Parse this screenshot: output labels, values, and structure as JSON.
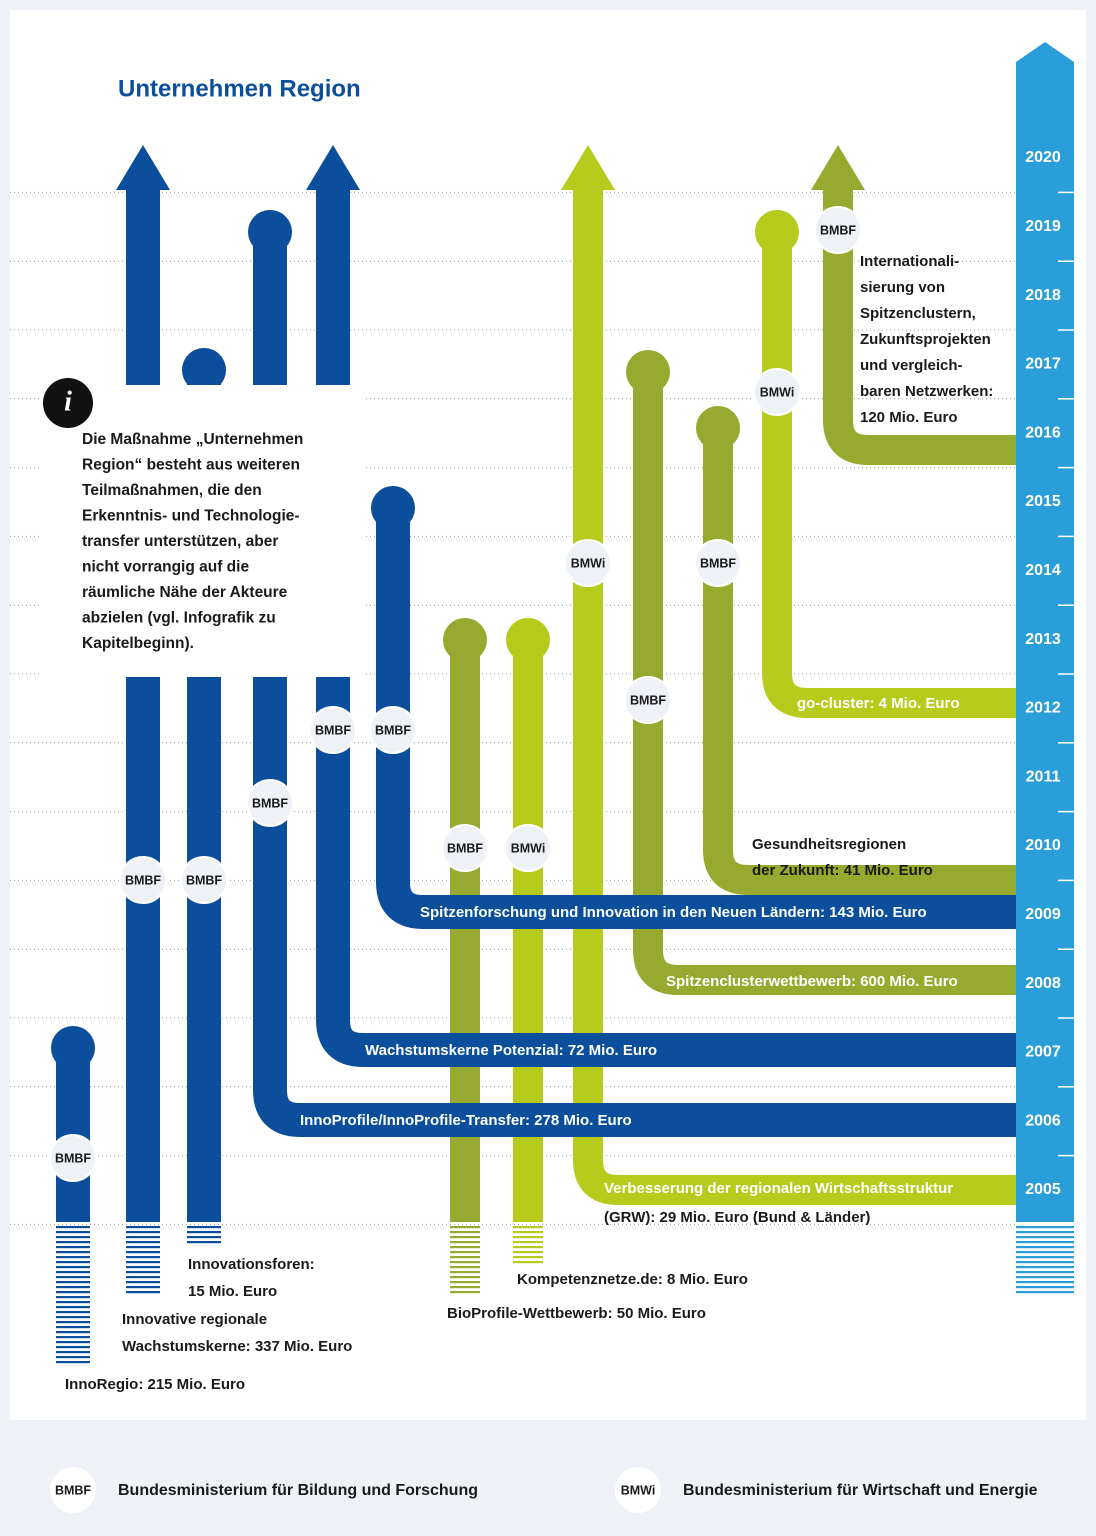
{
  "title": "Unternehmen Region",
  "years": [
    "2020",
    "2019",
    "2018",
    "2017",
    "2016",
    "2015",
    "2014",
    "2013",
    "2012",
    "2011",
    "2010",
    "2009",
    "2008",
    "2007",
    "2006",
    "2005"
  ],
  "info": {
    "icon": "i",
    "lines": [
      "Die Maßnahme „Unternehmen",
      "Region“ besteht aus weiteren",
      "Teilmaßnahmen, die den",
      "Erkenntnis- und Technologie-",
      "transfer unterstützen, aber",
      "nicht vorrangig auf die",
      "räumliche Nähe der Akteure",
      "abzielen (vgl. Infografik zu",
      "Kapitelbeginn)."
    ]
  },
  "programs": [
    {
      "label": [
        "InnoRegio: 215 Mio. Euro"
      ],
      "ministry": "BMBF",
      "color": "#0b4f9c"
    },
    {
      "label": [
        "Innovative regionale",
        "Wachstumskerne: 337 Mio. Euro"
      ],
      "ministry": "BMBF",
      "color": "#0b4f9c"
    },
    {
      "label": [
        "Innovationsforen:",
        "15 Mio. Euro"
      ],
      "ministry": "BMBF",
      "color": "#0b4f9c"
    },
    {
      "label": [
        "InnoProfile/InnoProfile-Transfer: 278 Mio. Euro"
      ],
      "ministry": "BMBF",
      "color": "#0b4f9c"
    },
    {
      "label": [
        "Wachstumskerne Potenzial: 72 Mio. Euro"
      ],
      "ministry": "BMBF",
      "color": "#0b4f9c"
    },
    {
      "label": [
        "Spitzenforschung und Innovation in den Neuen Ländern: 143 Mio. Euro"
      ],
      "ministry": "BMBF",
      "color": "#0b4f9c"
    },
    {
      "label": [
        "BioProfile-Wettbewerb: 50 Mio. Euro"
      ],
      "ministry": "BMBF",
      "color": "#98a92f"
    },
    {
      "label": [
        "Kompetenznetze.de: 8 Mio. Euro"
      ],
      "ministry": "BMWi",
      "color": "#b6cb1c"
    },
    {
      "label": [
        "Verbesserung der regionalen Wirtschaftsstruktur",
        "(GRW): 29 Mio. Euro (Bund & Länder)"
      ],
      "ministry": "BMWi",
      "color": "#b6cb1c"
    },
    {
      "label": [
        "Spitzenclusterwettbewerb: 600 Mio. Euro"
      ],
      "ministry": "BMBF",
      "color": "#98a92f"
    },
    {
      "label": [
        "Gesundheitsregionen",
        "der Zukunft: 41 Mio. Euro"
      ],
      "ministry": "BMBF",
      "color": "#98a92f"
    },
    {
      "label": [
        "go-cluster: 4 Mio. Euro"
      ],
      "ministry": "BMWi",
      "color": "#b6cb1c"
    },
    {
      "label": [
        "Internationali-",
        "sierung von",
        "Spitzenclustern,",
        "Zukunftsprojekten",
        "und vergleich-",
        "baren Netzwerken:",
        "120 Mio. Euro"
      ],
      "ministry": "BMBF",
      "color": "#98a92f"
    }
  ],
  "axis_color": "#2a9ed8",
  "legend": [
    {
      "abbr": "BMBF",
      "name": "Bundesministerium für Bildung und Forschung"
    },
    {
      "abbr": "BMWi",
      "name": "Bundesministerium für Wirtschaft und Energie"
    }
  ]
}
